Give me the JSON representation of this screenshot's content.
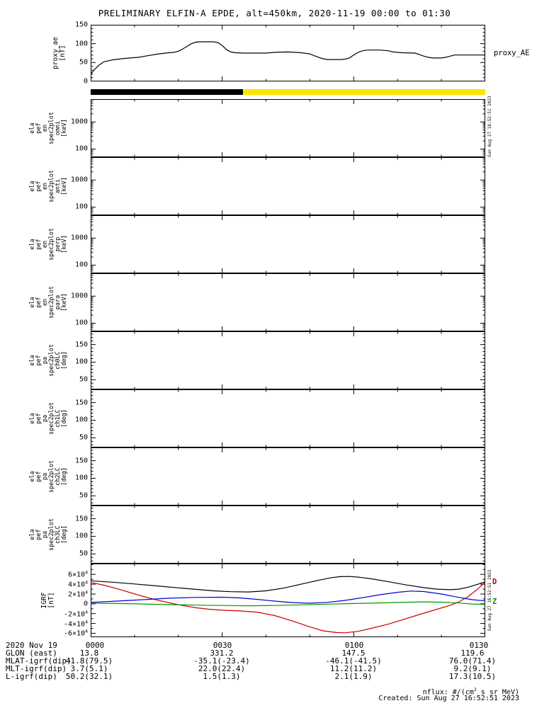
{
  "title": "PRELIMINARY ELFIN-A EPDE, alt=450km, 2020-11-19 00:00 to 01:30",
  "watermark": "Sun Aug 27 16:52:51 2023",
  "footer": {
    "rows": [
      {
        "label": "2020 Nov 19",
        "values": [
          "0000",
          "0030",
          "0100",
          "0130"
        ]
      },
      {
        "label": "GLON (east)",
        "values": [
          "13.8",
          "331.2",
          "147.5",
          "119.6"
        ]
      },
      {
        "label": "MLAT-igrf(dip)",
        "values": [
          "41.8(79.5)",
          "-35.1(-23.4)",
          "-46.1(-41.5)",
          "76.0(71.4)"
        ]
      },
      {
        "label": "MLT-igrf(dip)",
        "values": [
          "3.7(5.1)",
          "22.0(22.4)",
          "11.2(11.2)",
          "9.2(9.1)"
        ]
      },
      {
        "label": "L-igrf(dip)",
        "values": [
          "50.2(32.1)",
          "1.5(1.3)",
          "2.1(1.9)",
          "17.3(10.5)"
        ]
      }
    ],
    "notes": [
      "nflux: #/(cm^2 s sr MeV)",
      "Created: Sun Aug 27 16:52:51 2023"
    ]
  },
  "chart_data": {
    "type": "line",
    "layout": "multi-panel-time-series",
    "time_range_minutes": [
      0,
      90
    ],
    "x_axis": {
      "start_date": "2020 Nov 19",
      "ticks_minutes": [
        0,
        30,
        60,
        90
      ],
      "tick_labels": [
        "0000",
        "0030",
        "0100",
        "0130"
      ]
    },
    "panels": [
      {
        "id": "proxy_ae",
        "kind": "line",
        "ylabel_lines": [
          "proxy_ae",
          "[nT]"
        ],
        "right_label": "proxy_AE",
        "ylim": [
          0,
          150
        ],
        "yticks": [
          0,
          50,
          100,
          150
        ],
        "yminor_step": 10,
        "series": [
          {
            "name": "proxy_AE",
            "color": "#000000",
            "points": [
              [
                0,
                20
              ],
              [
                1,
                33
              ],
              [
                2,
                44
              ],
              [
                3,
                52
              ],
              [
                5,
                57
              ],
              [
                7,
                60
              ],
              [
                9,
                62
              ],
              [
                11,
                64
              ],
              [
                13,
                68
              ],
              [
                15,
                72
              ],
              [
                17,
                75
              ],
              [
                19,
                77
              ],
              [
                20,
                80
              ],
              [
                21,
                86
              ],
              [
                22,
                93
              ],
              [
                23,
                100
              ],
              [
                24,
                104
              ],
              [
                25,
                105
              ],
              [
                28,
                105
              ],
              [
                29,
                103
              ],
              [
                30,
                95
              ],
              [
                31,
                84
              ],
              [
                32,
                78
              ],
              [
                33,
                76
              ],
              [
                35,
                75
              ],
              [
                40,
                75
              ],
              [
                42,
                77
              ],
              [
                45,
                78
              ],
              [
                48,
                76
              ],
              [
                50,
                73
              ],
              [
                51,
                68
              ],
              [
                52,
                64
              ],
              [
                53,
                60
              ],
              [
                54,
                58
              ],
              [
                57,
                58
              ],
              [
                58,
                59
              ],
              [
                59,
                62
              ],
              [
                60,
                70
              ],
              [
                61,
                77
              ],
              [
                62,
                81
              ],
              [
                63,
                83
              ],
              [
                66,
                83
              ],
              [
                68,
                81
              ],
              [
                69,
                78
              ],
              [
                71,
                76
              ],
              [
                74,
                75
              ],
              [
                75,
                71
              ],
              [
                76,
                67
              ],
              [
                77,
                64
              ],
              [
                78,
                62
              ],
              [
                80,
                62
              ],
              [
                81,
                64
              ],
              [
                82,
                67
              ],
              [
                83,
                70
              ],
              [
                86,
                70
              ],
              [
                90,
                70
              ]
            ]
          }
        ]
      },
      {
        "id": "position_bar",
        "kind": "strip",
        "segments": [
          {
            "start_min": 0,
            "end_min": 34.7,
            "color": "#000000"
          },
          {
            "start_min": 34.7,
            "end_min": 90,
            "color": "#ffe400"
          }
        ]
      },
      {
        "id": "ela_pef_en_spec2plot_omni",
        "kind": "spectrogram-empty",
        "ylabel_lines": [
          "ela",
          "pef",
          "en",
          "spec2plot",
          "omni",
          "[keV]"
        ],
        "yscale": "log",
        "ylim": [
          50,
          7000
        ],
        "yticks": [
          100,
          1000
        ],
        "ytick_labels": [
          "100",
          "1000"
        ],
        "no_data": true
      },
      {
        "id": "ela_pef_en_spec2plot_anti",
        "kind": "spectrogram-empty",
        "ylabel_lines": [
          "ela",
          "pef",
          "en",
          "spec2plot",
          "anti",
          "[keV]"
        ],
        "yscale": "log",
        "ylim": [
          50,
          7000
        ],
        "yticks": [
          100,
          1000
        ],
        "ytick_labels": [
          "100",
          "1000"
        ],
        "no_data": true
      },
      {
        "id": "ela_pef_en_spec2plot_perp",
        "kind": "spectrogram-empty",
        "ylabel_lines": [
          "ela",
          "pef",
          "en",
          "spec2plot",
          "perp",
          "[keV]"
        ],
        "yscale": "log",
        "ylim": [
          50,
          7000
        ],
        "yticks": [
          100,
          1000
        ],
        "ytick_labels": [
          "100",
          "1000"
        ],
        "no_data": true
      },
      {
        "id": "ela_pef_en_spec2plot_para",
        "kind": "spectrogram-empty",
        "ylabel_lines": [
          "ela",
          "pef",
          "en",
          "spec2plot",
          "para",
          "[keV]"
        ],
        "yscale": "log",
        "ylim": [
          50,
          7000
        ],
        "yticks": [
          100,
          1000
        ],
        "ytick_labels": [
          "100",
          "1000"
        ],
        "no_data": true
      },
      {
        "id": "ela_pef_pa_spec2plot_ch0LC",
        "kind": "spectrogram-empty",
        "ylabel_lines": [
          "ela",
          "pef",
          "pa",
          "spec2plot",
          "ch0LC",
          "[deg]"
        ],
        "yscale": "linear",
        "ylim": [
          22.5,
          187.5
        ],
        "yticks": [
          50,
          100,
          150
        ],
        "yminor_step": 10,
        "no_data": true
      },
      {
        "id": "ela_pef_pa_spec2plot_ch1LC",
        "kind": "spectrogram-empty",
        "ylabel_lines": [
          "ela",
          "pef",
          "pa",
          "spec2plot",
          "ch1LC",
          "[deg]"
        ],
        "yscale": "linear",
        "ylim": [
          22.5,
          187.5
        ],
        "yticks": [
          50,
          100,
          150
        ],
        "yminor_step": 10,
        "no_data": true
      },
      {
        "id": "ela_pef_pa_spec2plot_ch2LC",
        "kind": "spectrogram-empty",
        "ylabel_lines": [
          "ela",
          "pef",
          "pa",
          "spec2plot",
          "ch2LC",
          "[deg]"
        ],
        "yscale": "linear",
        "ylim": [
          22.5,
          187.5
        ],
        "yticks": [
          50,
          100,
          150
        ],
        "yminor_step": 10,
        "no_data": true
      },
      {
        "id": "ela_pef_pa_spec2plot_ch3LC",
        "kind": "spectrogram-empty",
        "ylabel_lines": [
          "ela",
          "pef",
          "pa",
          "spec2plot",
          "ch3LC",
          "[deg]"
        ],
        "yscale": "linear",
        "ylim": [
          22.5,
          187.5
        ],
        "yticks": [
          50,
          100,
          150
        ],
        "yminor_step": 10,
        "no_data": true
      },
      {
        "id": "igrf",
        "kind": "line",
        "ylabel_lines": [
          "IGRF",
          "[nT]"
        ],
        "ylim": [
          -68000,
          82000
        ],
        "yticks": [
          -60000,
          -40000,
          -20000,
          0,
          20000,
          40000,
          60000
        ],
        "ytick_labels": [
          "-6×10^4",
          "-4×10^4",
          "-2×10^4",
          "0",
          "2×10^4",
          "4×10^4",
          "6×10^4"
        ],
        "yminor_step": 10000,
        "legend": [
          {
            "label": "D",
            "color": "#cc0000",
            "at_value": 45000
          },
          {
            "label": "Z",
            "color": "#009900",
            "at_value": 4000
          }
        ],
        "series": [
          {
            "name": "black-component",
            "color": "#000000",
            "points": [
              [
                0,
                47000
              ],
              [
                5,
                44000
              ],
              [
                10,
                40500
              ],
              [
                15,
                36500
              ],
              [
                20,
                32500
              ],
              [
                24,
                29500
              ],
              [
                28,
                26500
              ],
              [
                32,
                24800
              ],
              [
                36,
                24200
              ],
              [
                40,
                26500
              ],
              [
                44,
                32000
              ],
              [
                48,
                40000
              ],
              [
                52,
                48000
              ],
              [
                55,
                53500
              ],
              [
                57,
                55500
              ],
              [
                59,
                55800
              ],
              [
                61,
                54500
              ],
              [
                64,
                51000
              ],
              [
                68,
                45000
              ],
              [
                72,
                38500
              ],
              [
                76,
                33000
              ],
              [
                79,
                30000
              ],
              [
                82,
                28800
              ],
              [
                84,
                30000
              ],
              [
                86,
                33500
              ],
              [
                88,
                39000
              ],
              [
                90,
                45000
              ]
            ]
          },
          {
            "name": "D",
            "color": "#cc0000",
            "points": [
              [
                0,
                43500
              ],
              [
                3,
                38000
              ],
              [
                6,
                31000
              ],
              [
                9,
                23000
              ],
              [
                12,
                15000
              ],
              [
                15,
                8000
              ],
              [
                18,
                2000
              ],
              [
                21,
                -3500
              ],
              [
                24,
                -8000
              ],
              [
                27,
                -11000
              ],
              [
                30,
                -13000
              ],
              [
                34,
                -14500
              ],
              [
                38,
                -17000
              ],
              [
                42,
                -24000
              ],
              [
                46,
                -35000
              ],
              [
                50,
                -47000
              ],
              [
                53,
                -55000
              ],
              [
                56,
                -58500
              ],
              [
                58,
                -59000
              ],
              [
                61,
                -56000
              ],
              [
                64,
                -50000
              ],
              [
                68,
                -41000
              ],
              [
                72,
                -30000
              ],
              [
                76,
                -19000
              ],
              [
                79,
                -11000
              ],
              [
                82,
                -3000
              ],
              [
                84,
                4000
              ],
              [
                86,
                14000
              ],
              [
                88,
                28000
              ],
              [
                90,
                44000
              ]
            ]
          },
          {
            "name": "blue-component",
            "color": "#0000cc",
            "points": [
              [
                0,
                3000
              ],
              [
                6,
                5500
              ],
              [
                12,
                8500
              ],
              [
                18,
                11500
              ],
              [
                24,
                13000
              ],
              [
                30,
                13500
              ],
              [
                34,
                12000
              ],
              [
                38,
                9000
              ],
              [
                42,
                5500
              ],
              [
                46,
                2500
              ],
              [
                50,
                1200
              ],
              [
                54,
                3000
              ],
              [
                58,
                7000
              ],
              [
                62,
                12500
              ],
              [
                66,
                18500
              ],
              [
                70,
                23500
              ],
              [
                73,
                26000
              ],
              [
                76,
                25000
              ],
              [
                80,
                20000
              ],
              [
                84,
                13000
              ],
              [
                87,
                8500
              ],
              [
                90,
                6000
              ]
            ]
          },
          {
            "name": "Z",
            "color": "#009900",
            "points": [
              [
                0,
                1200
              ],
              [
                6,
                600
              ],
              [
                12,
                -400
              ],
              [
                18,
                -1600
              ],
              [
                24,
                -2600
              ],
              [
                30,
                -3400
              ],
              [
                36,
                -3900
              ],
              [
                42,
                -3400
              ],
              [
                48,
                -2100
              ],
              [
                54,
                -600
              ],
              [
                60,
                600
              ],
              [
                66,
                1800
              ],
              [
                72,
                3200
              ],
              [
                76,
                4000
              ],
              [
                80,
                3400
              ],
              [
                84,
                1600
              ],
              [
                87,
                -300
              ],
              [
                90,
                -1400
              ]
            ]
          }
        ]
      }
    ]
  }
}
